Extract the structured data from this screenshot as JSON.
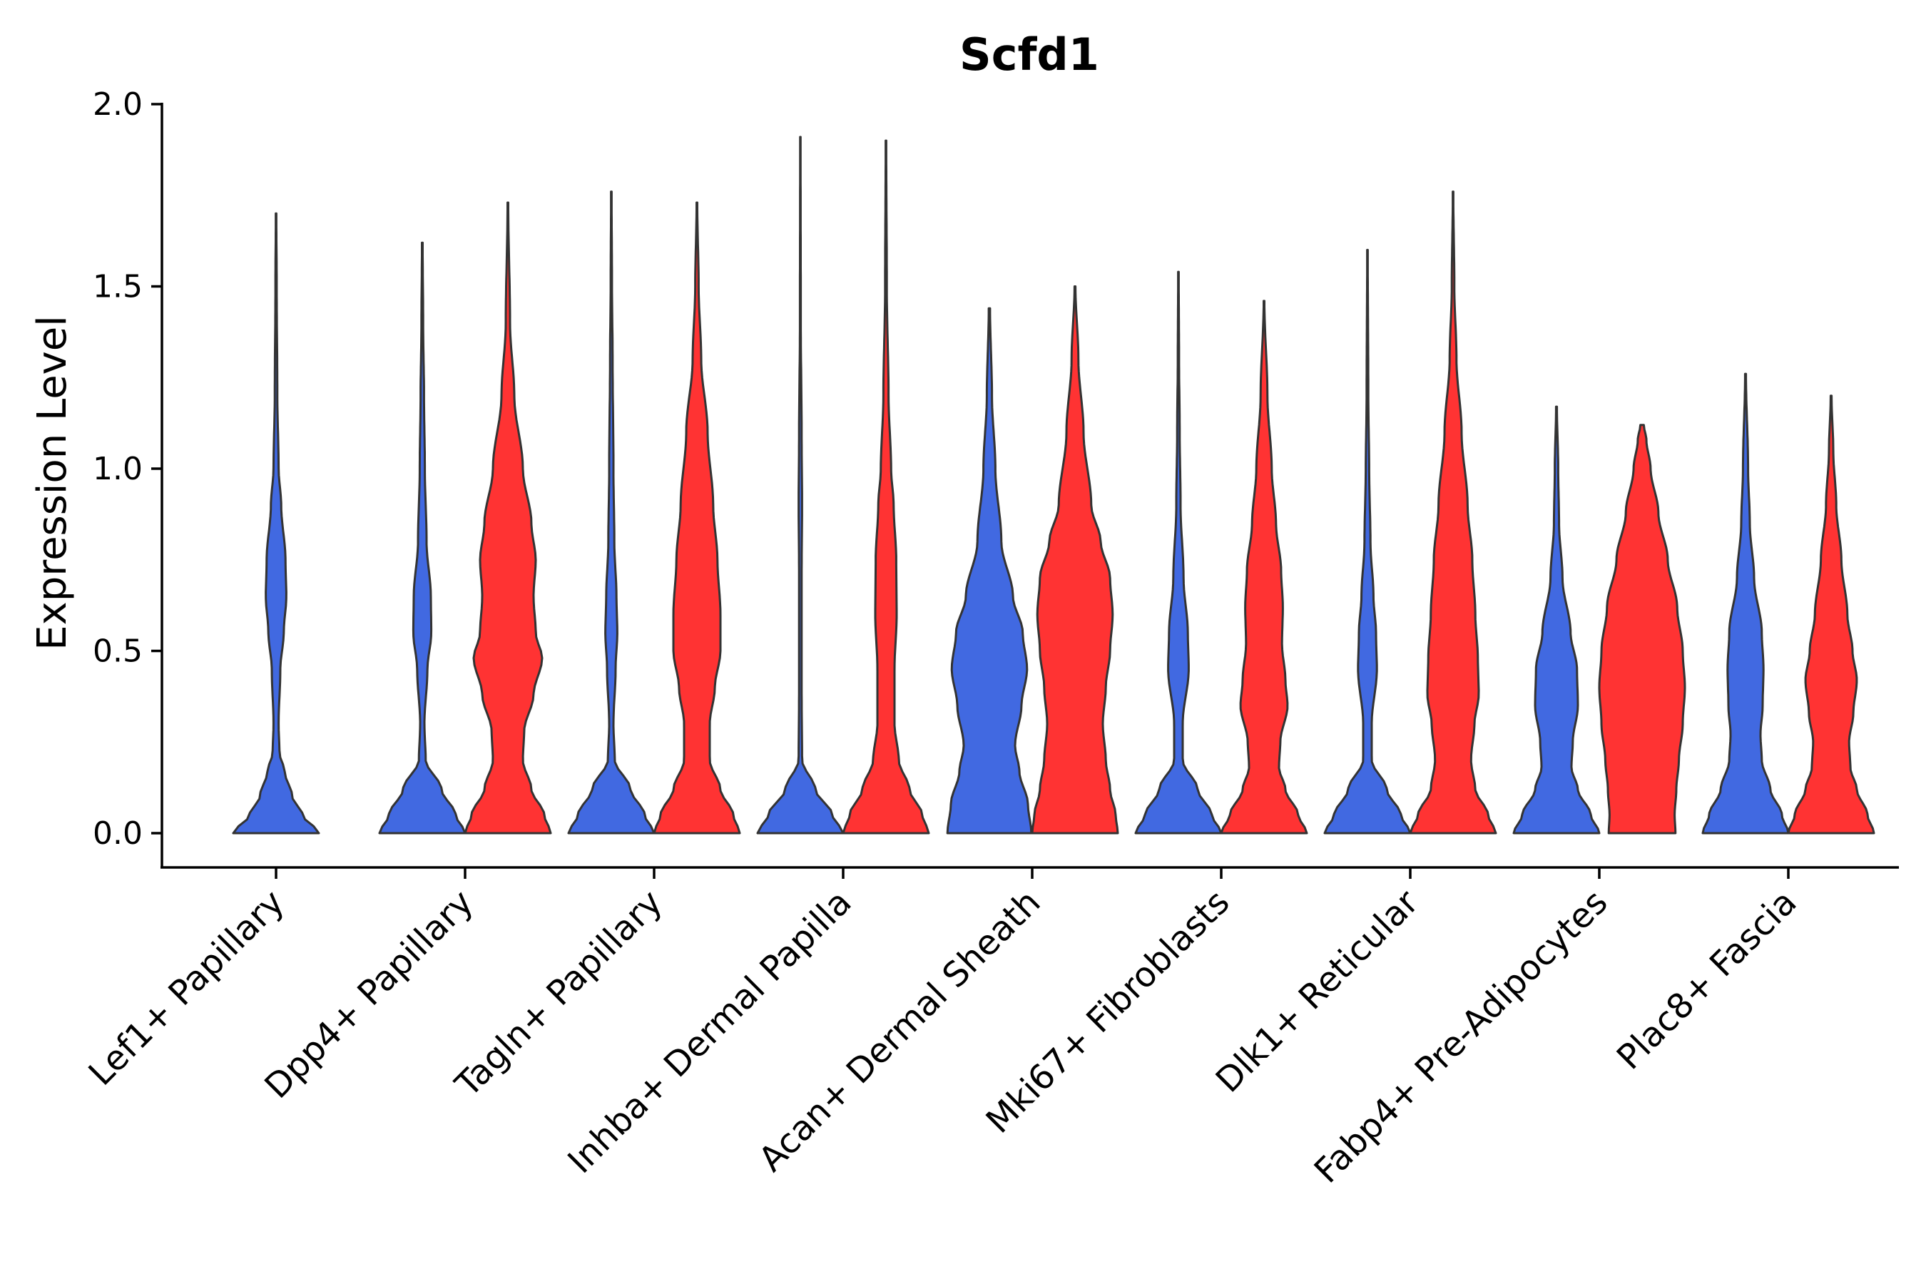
{
  "chart_data": {
    "type": "violin",
    "title": "Scfd1",
    "xlabel": "",
    "ylabel": "Expression Level",
    "ylim": [
      -0.1,
      2.0
    ],
    "yticks": [
      "0.0",
      "0.5",
      "1.0",
      "1.5",
      "2.0"
    ],
    "legend": "none",
    "colors": {
      "group1": "#4169E1",
      "group2": "#FF3333",
      "outline": "#333333"
    },
    "categories": [
      "Lef1+ Papillary",
      "Dpp4+ Papillary",
      "Tagln+ Papillary",
      "Inhba+ Dermal Papilla",
      "Acan+ Dermal Sheath",
      "Mki67+ Fibroblasts",
      "Dlk1+ Reticular",
      "Fabp4+ Pre-Adipocytes",
      "Plac8+ Fascia"
    ],
    "series": [
      {
        "name": "group1",
        "color": "#4169E1",
        "violins": [
          {
            "max": 1.7,
            "profile": [
              [
                0,
                1
              ],
              [
                0.05,
                0.62
              ],
              [
                0.1,
                0.38
              ],
              [
                0.17,
                0.2
              ],
              [
                0.22,
                0.08
              ],
              [
                0.3,
                0.06
              ],
              [
                0.45,
                0.1
              ],
              [
                0.55,
                0.18
              ],
              [
                0.65,
                0.24
              ],
              [
                0.75,
                0.22
              ],
              [
                0.9,
                0.12
              ],
              [
                1.0,
                0.06
              ],
              [
                1.2,
                0.03
              ],
              [
                1.5,
                0.015
              ],
              [
                1.7,
                0.006
              ]
            ]
          },
          {
            "max": 1.62,
            "profile": [
              [
                0,
                1
              ],
              [
                0.05,
                0.78
              ],
              [
                0.12,
                0.45
              ],
              [
                0.2,
                0.08
              ],
              [
                0.3,
                0.05
              ],
              [
                0.45,
                0.12
              ],
              [
                0.55,
                0.21
              ],
              [
                0.65,
                0.2
              ],
              [
                0.8,
                0.1
              ],
              [
                1.0,
                0.06
              ],
              [
                1.2,
                0.04
              ],
              [
                1.4,
                0.02
              ],
              [
                1.62,
                0.008
              ]
            ]
          },
          {
            "max": 1.76,
            "profile": [
              [
                0,
                1
              ],
              [
                0.05,
                0.78
              ],
              [
                0.12,
                0.45
              ],
              [
                0.2,
                0.08
              ],
              [
                0.3,
                0.05
              ],
              [
                0.45,
                0.1
              ],
              [
                0.55,
                0.14
              ],
              [
                0.65,
                0.12
              ],
              [
                0.8,
                0.07
              ],
              [
                1.0,
                0.05
              ],
              [
                1.3,
                0.03
              ],
              [
                1.5,
                0.015
              ],
              [
                1.76,
                0.006
              ]
            ]
          },
          {
            "max": 1.91,
            "profile": [
              [
                0,
                1
              ],
              [
                0.05,
                0.75
              ],
              [
                0.12,
                0.35
              ],
              [
                0.2,
                0.04
              ],
              [
                0.4,
                0.03
              ],
              [
                0.7,
                0.03
              ],
              [
                0.9,
                0.04
              ],
              [
                1.1,
                0.03
              ],
              [
                1.4,
                0.01
              ],
              [
                1.91,
                0.005
              ]
            ]
          },
          {
            "max": 1.44,
            "profile": [
              [
                0,
                0.98
              ],
              [
                0.08,
                0.9
              ],
              [
                0.17,
                0.7
              ],
              [
                0.24,
                0.6
              ],
              [
                0.35,
                0.75
              ],
              [
                0.45,
                0.88
              ],
              [
                0.55,
                0.78
              ],
              [
                0.65,
                0.55
              ],
              [
                0.8,
                0.28
              ],
              [
                1.0,
                0.14
              ],
              [
                1.2,
                0.06
              ],
              [
                1.44,
                0.015
              ]
            ]
          },
          {
            "max": 1.54,
            "profile": [
              [
                0,
                1
              ],
              [
                0.05,
                0.78
              ],
              [
                0.12,
                0.45
              ],
              [
                0.2,
                0.1
              ],
              [
                0.3,
                0.1
              ],
              [
                0.45,
                0.24
              ],
              [
                0.55,
                0.22
              ],
              [
                0.7,
                0.12
              ],
              [
                0.9,
                0.05
              ],
              [
                1.1,
                0.03
              ],
              [
                1.3,
                0.015
              ],
              [
                1.54,
                0.006
              ]
            ]
          },
          {
            "max": 1.6,
            "profile": [
              [
                0,
                1
              ],
              [
                0.05,
                0.78
              ],
              [
                0.12,
                0.45
              ],
              [
                0.2,
                0.1
              ],
              [
                0.3,
                0.1
              ],
              [
                0.45,
                0.22
              ],
              [
                0.55,
                0.2
              ],
              [
                0.65,
                0.14
              ],
              [
                0.8,
                0.07
              ],
              [
                1.0,
                0.04
              ],
              [
                1.2,
                0.02
              ],
              [
                1.6,
                0.006
              ]
            ]
          },
          {
            "max": 1.17,
            "profile": [
              [
                0,
                1
              ],
              [
                0.05,
                0.8
              ],
              [
                0.12,
                0.5
              ],
              [
                0.18,
                0.35
              ],
              [
                0.25,
                0.38
              ],
              [
                0.35,
                0.5
              ],
              [
                0.45,
                0.48
              ],
              [
                0.55,
                0.33
              ],
              [
                0.7,
                0.14
              ],
              [
                0.85,
                0.06
              ],
              [
                1.0,
                0.04
              ],
              [
                1.17,
                0.01
              ]
            ]
          },
          {
            "max": 1.26,
            "profile": [
              [
                0,
                1
              ],
              [
                0.05,
                0.85
              ],
              [
                0.12,
                0.58
              ],
              [
                0.2,
                0.38
              ],
              [
                0.27,
                0.35
              ],
              [
                0.35,
                0.4
              ],
              [
                0.45,
                0.42
              ],
              [
                0.55,
                0.38
              ],
              [
                0.7,
                0.2
              ],
              [
                0.85,
                0.1
              ],
              [
                1.0,
                0.06
              ],
              [
                1.26,
                0.01
              ]
            ]
          }
        ]
      },
      {
        "name": "group2",
        "color": "#FF3333",
        "violins": [
          null,
          {
            "max": 1.73,
            "profile": [
              [
                0,
                1
              ],
              [
                0.05,
                0.85
              ],
              [
                0.12,
                0.55
              ],
              [
                0.2,
                0.35
              ],
              [
                0.28,
                0.38
              ],
              [
                0.38,
                0.6
              ],
              [
                0.48,
                0.8
              ],
              [
                0.55,
                0.65
              ],
              [
                0.65,
                0.6
              ],
              [
                0.75,
                0.65
              ],
              [
                0.85,
                0.55
              ],
              [
                1.0,
                0.35
              ],
              [
                1.2,
                0.15
              ],
              [
                1.4,
                0.05
              ],
              [
                1.73,
                0.008
              ]
            ]
          },
          {
            "max": 1.73,
            "profile": [
              [
                0,
                1
              ],
              [
                0.05,
                0.85
              ],
              [
                0.12,
                0.55
              ],
              [
                0.2,
                0.3
              ],
              [
                0.3,
                0.3
              ],
              [
                0.4,
                0.42
              ],
              [
                0.5,
                0.55
              ],
              [
                0.6,
                0.55
              ],
              [
                0.75,
                0.48
              ],
              [
                0.9,
                0.38
              ],
              [
                1.1,
                0.25
              ],
              [
                1.3,
                0.1
              ],
              [
                1.5,
                0.04
              ],
              [
                1.73,
                0.008
              ]
            ]
          },
          {
            "max": 1.9,
            "profile": [
              [
                0,
                1
              ],
              [
                0.05,
                0.85
              ],
              [
                0.12,
                0.55
              ],
              [
                0.2,
                0.3
              ],
              [
                0.3,
                0.2
              ],
              [
                0.45,
                0.2
              ],
              [
                0.6,
                0.25
              ],
              [
                0.75,
                0.24
              ],
              [
                0.9,
                0.18
              ],
              [
                1.0,
                0.12
              ],
              [
                1.2,
                0.06
              ],
              [
                1.5,
                0.02
              ],
              [
                1.9,
                0.006
              ]
            ]
          },
          {
            "max": 1.5,
            "profile": [
              [
                0,
                1
              ],
              [
                0.05,
                0.95
              ],
              [
                0.12,
                0.82
              ],
              [
                0.2,
                0.72
              ],
              [
                0.3,
                0.65
              ],
              [
                0.4,
                0.72
              ],
              [
                0.5,
                0.82
              ],
              [
                0.6,
                0.88
              ],
              [
                0.7,
                0.82
              ],
              [
                0.8,
                0.6
              ],
              [
                0.9,
                0.38
              ],
              [
                1.1,
                0.2
              ],
              [
                1.3,
                0.08
              ],
              [
                1.5,
                0.01
              ]
            ]
          },
          {
            "max": 1.46,
            "profile": [
              [
                0,
                1
              ],
              [
                0.05,
                0.8
              ],
              [
                0.12,
                0.5
              ],
              [
                0.18,
                0.35
              ],
              [
                0.25,
                0.38
              ],
              [
                0.35,
                0.55
              ],
              [
                0.42,
                0.5
              ],
              [
                0.52,
                0.42
              ],
              [
                0.62,
                0.44
              ],
              [
                0.72,
                0.4
              ],
              [
                0.85,
                0.28
              ],
              [
                1.0,
                0.18
              ],
              [
                1.2,
                0.08
              ],
              [
                1.46,
                0.008
              ]
            ]
          },
          {
            "max": 1.76,
            "profile": [
              [
                0,
                1
              ],
              [
                0.05,
                0.82
              ],
              [
                0.12,
                0.52
              ],
              [
                0.2,
                0.42
              ],
              [
                0.3,
                0.5
              ],
              [
                0.38,
                0.6
              ],
              [
                0.48,
                0.58
              ],
              [
                0.6,
                0.52
              ],
              [
                0.75,
                0.45
              ],
              [
                0.9,
                0.34
              ],
              [
                1.1,
                0.2
              ],
              [
                1.3,
                0.08
              ],
              [
                1.5,
                0.03
              ],
              [
                1.76,
                0.006
              ]
            ]
          },
          {
            "max": 1.12,
            "profile": [
              [
                0,
                0.78
              ],
              [
                0.05,
                0.76
              ],
              [
                0.12,
                0.8
              ],
              [
                0.2,
                0.86
              ],
              [
                0.3,
                0.95
              ],
              [
                0.4,
                1.0
              ],
              [
                0.5,
                0.95
              ],
              [
                0.62,
                0.82
              ],
              [
                0.75,
                0.6
              ],
              [
                0.88,
                0.38
              ],
              [
                1.0,
                0.2
              ],
              [
                1.08,
                0.1
              ],
              [
                1.12,
                0.04
              ]
            ]
          },
          {
            "max": 1.2,
            "profile": [
              [
                0,
                1
              ],
              [
                0.05,
                0.85
              ],
              [
                0.12,
                0.6
              ],
              [
                0.18,
                0.45
              ],
              [
                0.25,
                0.42
              ],
              [
                0.33,
                0.52
              ],
              [
                0.42,
                0.6
              ],
              [
                0.5,
                0.5
              ],
              [
                0.6,
                0.38
              ],
              [
                0.75,
                0.24
              ],
              [
                0.9,
                0.12
              ],
              [
                1.05,
                0.05
              ],
              [
                1.2,
                0.01
              ]
            ]
          }
        ]
      }
    ]
  }
}
